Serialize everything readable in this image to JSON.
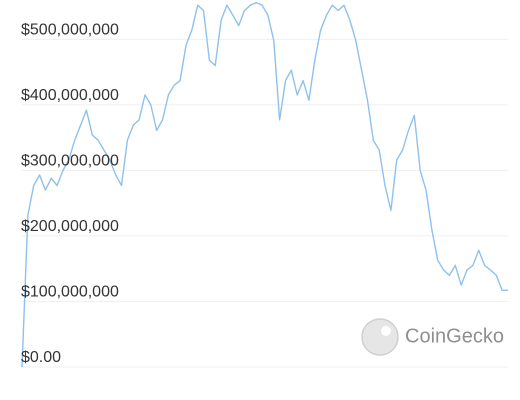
{
  "chart_data": {
    "type": "line",
    "watermark": "CoinGecko",
    "categories": [
      null,
      null,
      null,
      null,
      null,
      null,
      null,
      null,
      null,
      null,
      null,
      null,
      null,
      null,
      null,
      null,
      null,
      null,
      null,
      null,
      null,
      null,
      null,
      null,
      null,
      null,
      null,
      null,
      null,
      null,
      null,
      null,
      null,
      null,
      null,
      null,
      null,
      null,
      null,
      null,
      null,
      null,
      null,
      null,
      null,
      null,
      null,
      null,
      null,
      null,
      null,
      null,
      null,
      null,
      null,
      null,
      null,
      null,
      null,
      null,
      null,
      null,
      null,
      null,
      null,
      null,
      null,
      null,
      null,
      null,
      null,
      null,
      null,
      null,
      null,
      null,
      null,
      null,
      null,
      null,
      null,
      null,
      null,
      null
    ],
    "series": [
      {
        "color": "#8ec1ec",
        "values": [
          0,
          232000000,
          277000000,
          293000000,
          270000000,
          288000000,
          277000000,
          300000000,
          316000000,
          346000000,
          369000000,
          392000000,
          354000000,
          346000000,
          331000000,
          316000000,
          293000000,
          277000000,
          346000000,
          369000000,
          377000000,
          415000000,
          400000000,
          361000000,
          377000000,
          415000000,
          430000000,
          437000000,
          491000000,
          514000000,
          552000000,
          544000000,
          468000000,
          460000000,
          529000000,
          552000000,
          537000000,
          521000000,
          544000000,
          552000000,
          556000000,
          552000000,
          537000000,
          498000000,
          377000000,
          437000000,
          453000000,
          415000000,
          437000000,
          407000000,
          468000000,
          514000000,
          537000000,
          552000000,
          544000000,
          552000000,
          529000000,
          498000000,
          453000000,
          407000000,
          346000000,
          331000000,
          277000000,
          239000000,
          316000000,
          331000000,
          361000000,
          384000000,
          300000000,
          270000000,
          209000000,
          163000000,
          148000000,
          140000000,
          155000000,
          125000000,
          148000000,
          155000000,
          178000000,
          155000000,
          148000000,
          140000000,
          117000000,
          117000000
        ]
      }
    ],
    "ylim": [
      0,
      560000000
    ],
    "yticks": [
      {
        "value": 0,
        "label": "$0.00"
      },
      {
        "value": 100000000,
        "label": "$100,000,000"
      },
      {
        "value": 200000000,
        "label": "$200,000,000"
      },
      {
        "value": 300000000,
        "label": "$300,000,000"
      },
      {
        "value": 400000000,
        "label": "$400,000,000"
      },
      {
        "value": 500000000,
        "label": "$500,000,000"
      }
    ],
    "grid": true
  }
}
